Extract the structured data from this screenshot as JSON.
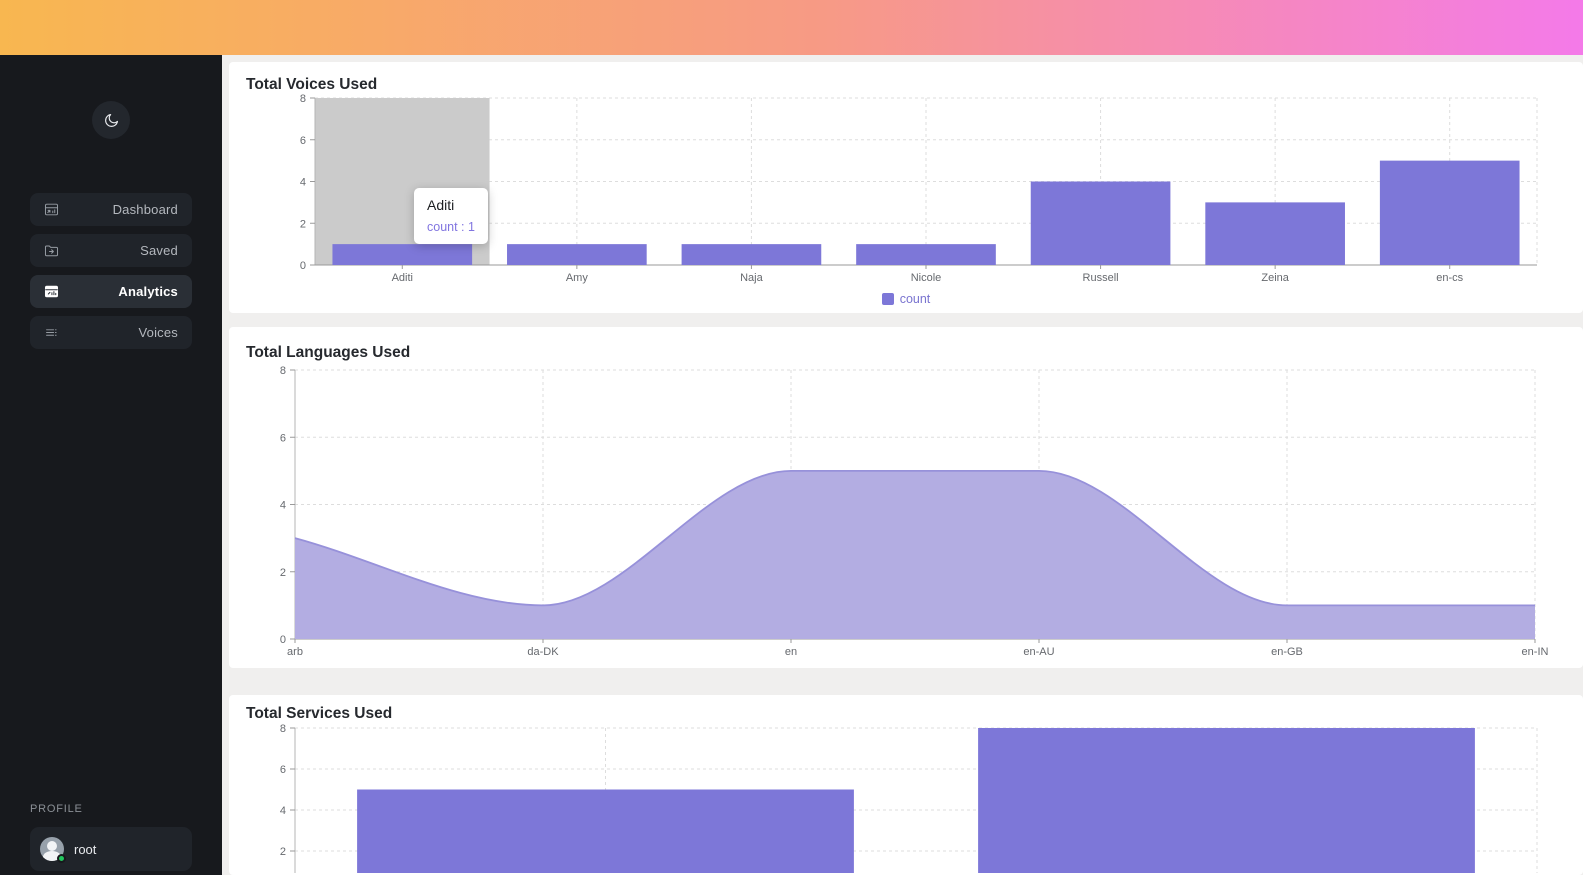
{
  "topbar": {
    "gradient": [
      "#f8b750",
      "#f79a85",
      "#f47ae9"
    ]
  },
  "sidebar": {
    "theme_toggle_icon": "moon-icon",
    "items": [
      {
        "label": "Dashboard",
        "icon": "dashboard-icon",
        "active": false
      },
      {
        "label": "Saved",
        "icon": "saved-icon",
        "active": false
      },
      {
        "label": "Analytics",
        "icon": "analytics-icon",
        "active": true
      },
      {
        "label": "Voices",
        "icon": "voices-icon",
        "active": false
      }
    ],
    "profile_section_label": "PROFILE",
    "profile": {
      "username": "root",
      "status": "online"
    }
  },
  "colors": {
    "bar": "#7d77d8",
    "area_fill": "#b3ade2",
    "area_line": "#9791da",
    "legend_text": "#7a74d0",
    "tooltip_value": "#8175e0",
    "highlight_band": "#cbcbcb",
    "grid": "#dddddd",
    "axis": "#9a9a9a",
    "tick_label": "#66696e",
    "status_online": "#22c55e"
  },
  "chart_data": [
    {
      "type": "bar",
      "title": "Total Voices Used",
      "categories": [
        "Aditi",
        "Amy",
        "Naja",
        "Nicole",
        "Russell",
        "Zeina",
        "en-cs"
      ],
      "series": [
        {
          "name": "count",
          "values": [
            1,
            1,
            1,
            1,
            4,
            3,
            5
          ]
        }
      ],
      "ylim": [
        0,
        8
      ],
      "yticks": [
        0,
        2,
        4,
        6,
        8
      ],
      "grid": "dashed",
      "legend": {
        "visible": true,
        "position": "bottom",
        "label": "count"
      },
      "highlight_category": "Aditi",
      "tooltip": {
        "category": "Aditi",
        "text": "count : 1"
      }
    },
    {
      "type": "area",
      "title": "Total Languages Used",
      "categories": [
        "arb",
        "da-DK",
        "en",
        "en-AU",
        "en-GB",
        "en-IN"
      ],
      "series": [
        {
          "name": "count",
          "values": [
            3,
            1,
            5,
            5,
            1,
            1
          ]
        }
      ],
      "ylim": [
        0,
        8
      ],
      "yticks": [
        0,
        2,
        4,
        6,
        8
      ],
      "grid": "dashed",
      "smooth": true,
      "legend": {
        "visible": false
      }
    },
    {
      "type": "bar",
      "title": "Total Services Used",
      "categories": [
        "",
        ""
      ],
      "series": [
        {
          "name": "count",
          "values": [
            5,
            8
          ]
        }
      ],
      "ylim": [
        0,
        8
      ],
      "yticks": [
        2,
        4,
        6,
        8
      ],
      "grid": "dashed",
      "legend": {
        "visible": false
      },
      "clipped_bottom": true
    }
  ]
}
